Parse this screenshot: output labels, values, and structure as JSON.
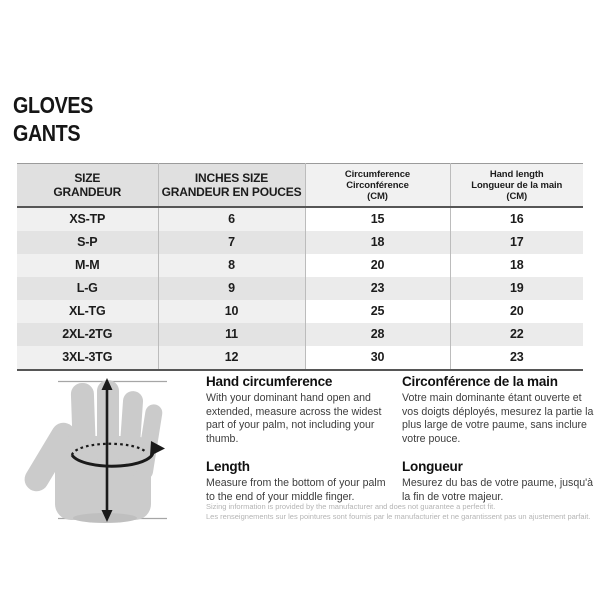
{
  "title": {
    "line1": "GLOVES",
    "line2": "GANTS"
  },
  "table": {
    "headers": [
      {
        "lines": [
          "SIZE",
          "GRANDEUR"
        ]
      },
      {
        "lines": [
          "INCHES SIZE",
          "GRANDEUR EN POUCES"
        ]
      },
      {
        "lines": [
          "Circumference",
          "Circonférence",
          "(CM)"
        ]
      },
      {
        "lines": [
          "Hand length",
          "Longueur de la main",
          "(CM)"
        ]
      }
    ],
    "rows": [
      [
        "XS-TP",
        "6",
        "15",
        "16"
      ],
      [
        "S-P",
        "7",
        "18",
        "17"
      ],
      [
        "M-M",
        "8",
        "20",
        "18"
      ],
      [
        "L-G",
        "9",
        "23",
        "19"
      ],
      [
        "XL-TG",
        "10",
        "25",
        "20"
      ],
      [
        "2XL-2TG",
        "11",
        "28",
        "22"
      ],
      [
        "3XL-3TG",
        "12",
        "30",
        "23"
      ]
    ]
  },
  "instructions": {
    "en": [
      {
        "heading": "Hand circumference",
        "body": "With your dominant hand open and extended, measure across the widest part of your palm, not including your thumb."
      },
      {
        "heading": "Length",
        "body": "Measure from the bottom of your palm to the end of your middle finger."
      }
    ],
    "fr": [
      {
        "heading": "Circonférence de la main",
        "body": "Votre main dominante étant ouverte et vos doigts déployés, mesurez la partie la plus large de votre paume, sans inclure votre pouce."
      },
      {
        "heading": "Longueur",
        "body": "Mesurez du bas de votre paume, jusqu'à la fin de votre majeur."
      }
    ]
  },
  "disclaimer": {
    "en": "Sizing information is provided by the manufacturer and does not guarantee a perfect fit.",
    "fr": "Les renseignements sur les pointures sont fournis par le manufacturier et ne garantissent pas un ajustement parfait."
  },
  "illustration": {
    "name": "hand-measurement-diagram",
    "elements": [
      "hand-silhouette",
      "length-arrow",
      "circumference-band"
    ]
  },
  "colors": {
    "header_left_bg": "#e0e0e0",
    "header_right_bg": "#f1f1f1",
    "row_odd_left": "#f0f0f0",
    "row_even_left": "#e3e3e3",
    "row_odd_right": "#ffffff",
    "row_even_right": "#ebebeb",
    "table_border_dark": "#565656",
    "hand_fill": "#cbcbcb",
    "disclaimer_text": "#b4b4b4"
  }
}
